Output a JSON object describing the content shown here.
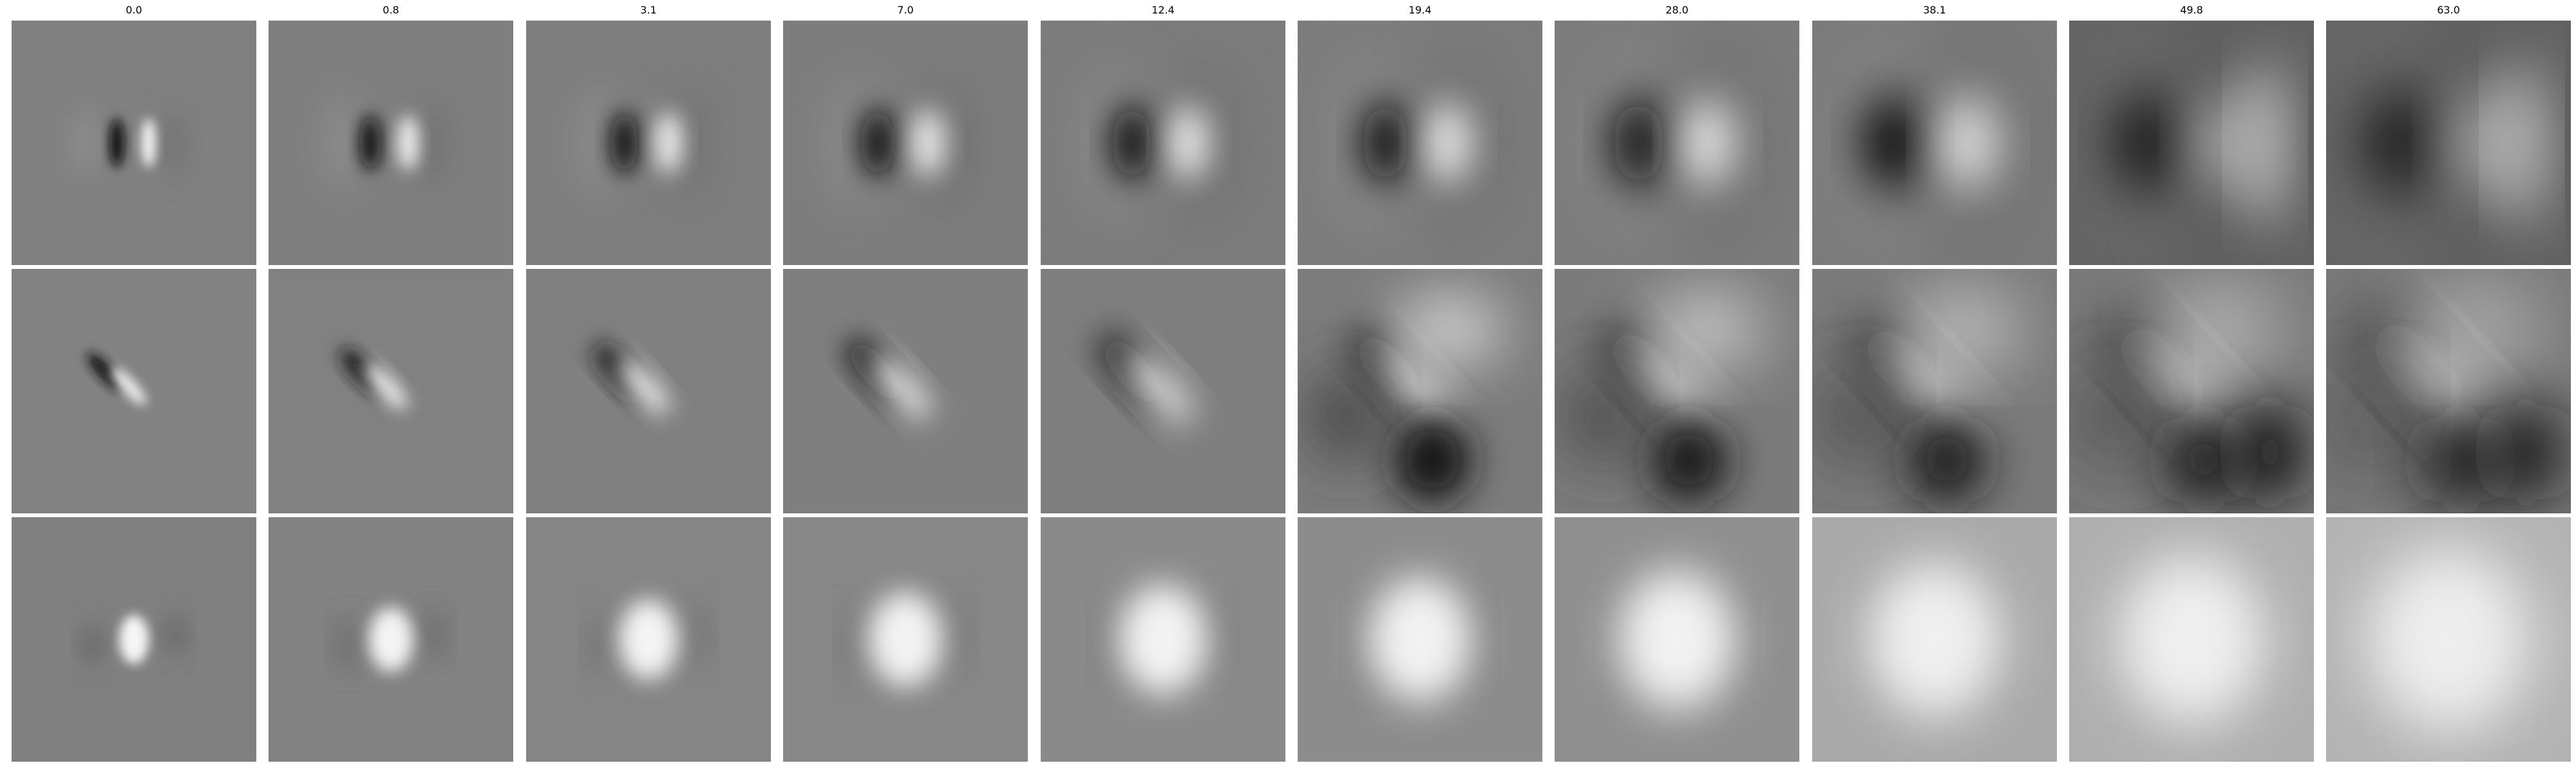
{
  "figure": {
    "column_titles": [
      "0.0",
      "0.8",
      "3.1",
      "7.0",
      "12.4",
      "19.4",
      "28.0",
      "38.1",
      "49.8",
      "63.0"
    ]
  },
  "chart_data": {
    "type": "heatmap",
    "colormap": "grayscale",
    "rows": 3,
    "columns": 10,
    "column_labels": [
      "0.0",
      "0.8",
      "3.1",
      "7.0",
      "12.4",
      "19.4",
      "28.0",
      "38.1",
      "49.8",
      "63.0"
    ]
  }
}
